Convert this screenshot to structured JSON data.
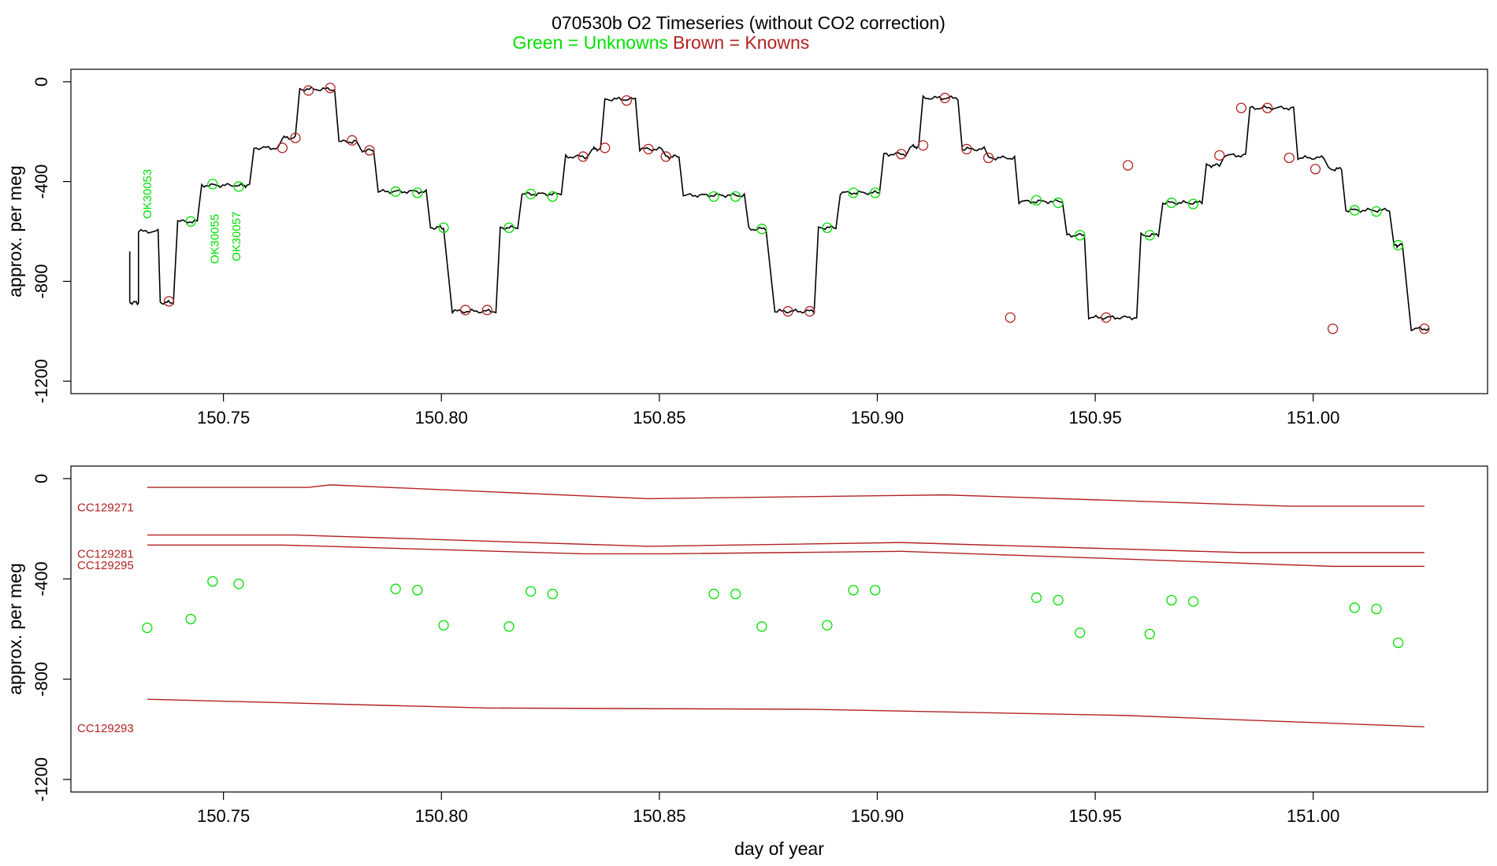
{
  "title": {
    "main": "070530b   O2 Timeseries (without CO2 correction)",
    "green_label": "Green = Unknowns",
    "brown_label": "Brown = Knowns"
  },
  "colors": {
    "unknown": "#00e000",
    "known": "#b22222",
    "trace": "#000000",
    "axis": "#000000"
  },
  "chart_data": [
    {
      "type": "line",
      "panel": "top",
      "ylabel": "approx. per meg",
      "xlabel": "",
      "xlim": [
        150.715,
        151.04
      ],
      "ylim": [
        -1250,
        50
      ],
      "x_ticks": [
        "150.75",
        "150.80",
        "150.85",
        "150.90",
        "150.95",
        "151.00"
      ],
      "y_ticks": [
        "0",
        "-400",
        "-800",
        "-1200"
      ],
      "trace_segments": [
        [
          150.7285,
          150.7305,
          -885
        ],
        [
          150.7305,
          150.735,
          -600
        ],
        [
          150.7355,
          150.7385,
          -885
        ],
        [
          150.7395,
          150.744,
          -560
        ],
        [
          150.745,
          150.7525,
          -415
        ],
        [
          150.7535,
          150.756,
          -415
        ],
        [
          150.757,
          150.7625,
          -265
        ],
        [
          150.7635,
          150.7665,
          -225
        ],
        [
          150.7675,
          150.7755,
          -30
        ],
        [
          150.7765,
          150.7805,
          -240
        ],
        [
          150.7815,
          150.7845,
          -275
        ],
        [
          150.7855,
          150.7965,
          -440
        ],
        [
          150.7975,
          150.8005,
          -585
        ],
        [
          150.8025,
          150.8125,
          -920
        ],
        [
          150.8135,
          150.8175,
          -585
        ],
        [
          150.8185,
          150.8275,
          -450
        ],
        [
          150.8285,
          150.8335,
          -300
        ],
        [
          150.8345,
          150.8365,
          -270
        ],
        [
          150.8375,
          150.8445,
          -70
        ],
        [
          150.8455,
          150.8505,
          -270
        ],
        [
          150.8515,
          150.8545,
          -300
        ],
        [
          150.8555,
          150.8695,
          -455
        ],
        [
          150.8705,
          150.8745,
          -590
        ],
        [
          150.8765,
          150.8855,
          -920
        ],
        [
          150.8865,
          150.8905,
          -585
        ],
        [
          150.8915,
          150.9005,
          -445
        ],
        [
          150.9015,
          150.9065,
          -290
        ],
        [
          150.9075,
          150.9095,
          -260
        ],
        [
          150.9105,
          150.9185,
          -65
        ],
        [
          150.9195,
          150.9245,
          -270
        ],
        [
          150.9255,
          150.9315,
          -305
        ],
        [
          150.9325,
          150.9425,
          -480
        ],
        [
          150.9435,
          150.9475,
          -615
        ],
        [
          150.9485,
          150.9595,
          -945
        ],
        [
          150.9605,
          150.9645,
          -615
        ],
        [
          150.9655,
          150.9745,
          -485
        ],
        [
          150.9755,
          150.9785,
          -335
        ],
        [
          150.9795,
          150.9845,
          -295
        ],
        [
          150.9855,
          150.9955,
          -105
        ],
        [
          150.9965,
          151.0025,
          -305
        ],
        [
          151.0035,
          151.0065,
          -350
        ],
        [
          151.0075,
          151.0175,
          -515
        ],
        [
          151.0185,
          151.0205,
          -655
        ],
        [
          151.0225,
          151.0265,
          -990
        ]
      ],
      "knowns": {
        "x": [
          150.7375,
          150.7695,
          150.7745,
          150.7795,
          150.7835,
          150.7635,
          150.7665,
          150.8055,
          150.8105,
          150.8325,
          150.8375,
          150.8425,
          150.8475,
          150.8515,
          150.8795,
          150.8845,
          150.9055,
          150.9105,
          150.9155,
          150.9205,
          150.9255,
          150.9305,
          150.9525,
          150.9575,
          150.9785,
          150.9835,
          150.9895,
          150.9945,
          151.0005,
          151.0045,
          151.0255
        ],
        "y": [
          -880,
          -35,
          -25,
          -235,
          -275,
          -265,
          -225,
          -915,
          -915,
          -300,
          -265,
          -75,
          -270,
          -300,
          -920,
          -920,
          -290,
          -255,
          -65,
          -270,
          -305,
          -945,
          -945,
          -335,
          -295,
          -105,
          -105,
          -305,
          -350,
          -990,
          -990
        ]
      },
      "unknowns": {
        "x": [
          150.7425,
          150.7475,
          150.7535,
          150.7895,
          150.7945,
          150.8005,
          150.8155,
          150.8205,
          150.8255,
          150.8625,
          150.8675,
          150.8735,
          150.8885,
          150.8945,
          150.8995,
          150.9365,
          150.9415,
          150.9465,
          150.9625,
          150.9675,
          150.9725,
          151.0095,
          151.0145,
          151.0195
        ],
        "y": [
          -560,
          -410,
          -420,
          -440,
          -445,
          -585,
          -585,
          -450,
          -460,
          -460,
          -460,
          -590,
          -585,
          -445,
          -445,
          -475,
          -485,
          -615,
          -615,
          -485,
          -490,
          -515,
          -520,
          -655
        ]
      },
      "annotations": [
        {
          "text": "OK30053",
          "x": 150.7325,
          "y": -450
        },
        {
          "text": "OK30055",
          "x": 150.748,
          "y": -630
        },
        {
          "text": "OK30057",
          "x": 150.753,
          "y": -620
        }
      ]
    },
    {
      "type": "scatter",
      "panel": "bottom",
      "ylabel": "approx. per meg",
      "xlabel": "day of year",
      "xlim": [
        150.715,
        151.04
      ],
      "ylim": [
        -1250,
        50
      ],
      "x_ticks": [
        "150.75",
        "150.80",
        "150.85",
        "150.90",
        "150.95",
        "151.00"
      ],
      "y_ticks": [
        "0",
        "-400",
        "-800",
        "-1200"
      ],
      "known_lines": [
        {
          "name": "CC129271",
          "label_y": -115,
          "x": [
            150.7325,
            150.7695,
            150.7745,
            150.8475,
            150.9155,
            150.9945,
            151.0255
          ],
          "y": [
            -35,
            -35,
            -25,
            -80,
            -65,
            -110,
            -110
          ]
        },
        {
          "name": "CC129281",
          "label_y": -300,
          "x": [
            150.7325,
            150.7665,
            150.8475,
            150.9055,
            150.9835,
            151.0255
          ],
          "y": [
            -225,
            -225,
            -270,
            -255,
            -295,
            -295
          ]
        },
        {
          "name": "CC129295",
          "label_y": -345,
          "x": [
            150.7325,
            150.7635,
            150.8325,
            150.8515,
            150.9055,
            150.9305,
            151.0045,
            151.0255
          ],
          "y": [
            -265,
            -265,
            -300,
            -300,
            -290,
            -305,
            -350,
            -350
          ]
        },
        {
          "name": "CC129293",
          "label_y": -995,
          "x": [
            150.7325,
            150.8105,
            150.8845,
            150.9575,
            151.0255
          ],
          "y": [
            -880,
            -915,
            -920,
            -945,
            -990
          ]
        }
      ],
      "unknowns": {
        "x": [
          150.7325,
          150.7425,
          150.7475,
          150.7535,
          150.7895,
          150.7945,
          150.8005,
          150.8155,
          150.8205,
          150.8255,
          150.8625,
          150.8675,
          150.8735,
          150.8885,
          150.8945,
          150.8995,
          150.9365,
          150.9415,
          150.9465,
          150.9625,
          150.9675,
          150.9725,
          151.0095,
          151.0145,
          151.0195
        ],
        "y": [
          -595,
          -560,
          -410,
          -420,
          -440,
          -445,
          -585,
          -590,
          -450,
          -460,
          -460,
          -460,
          -590,
          -585,
          -445,
          -445,
          -475,
          -485,
          -615,
          -620,
          -485,
          -490,
          -515,
          -520,
          -655
        ]
      }
    }
  ]
}
